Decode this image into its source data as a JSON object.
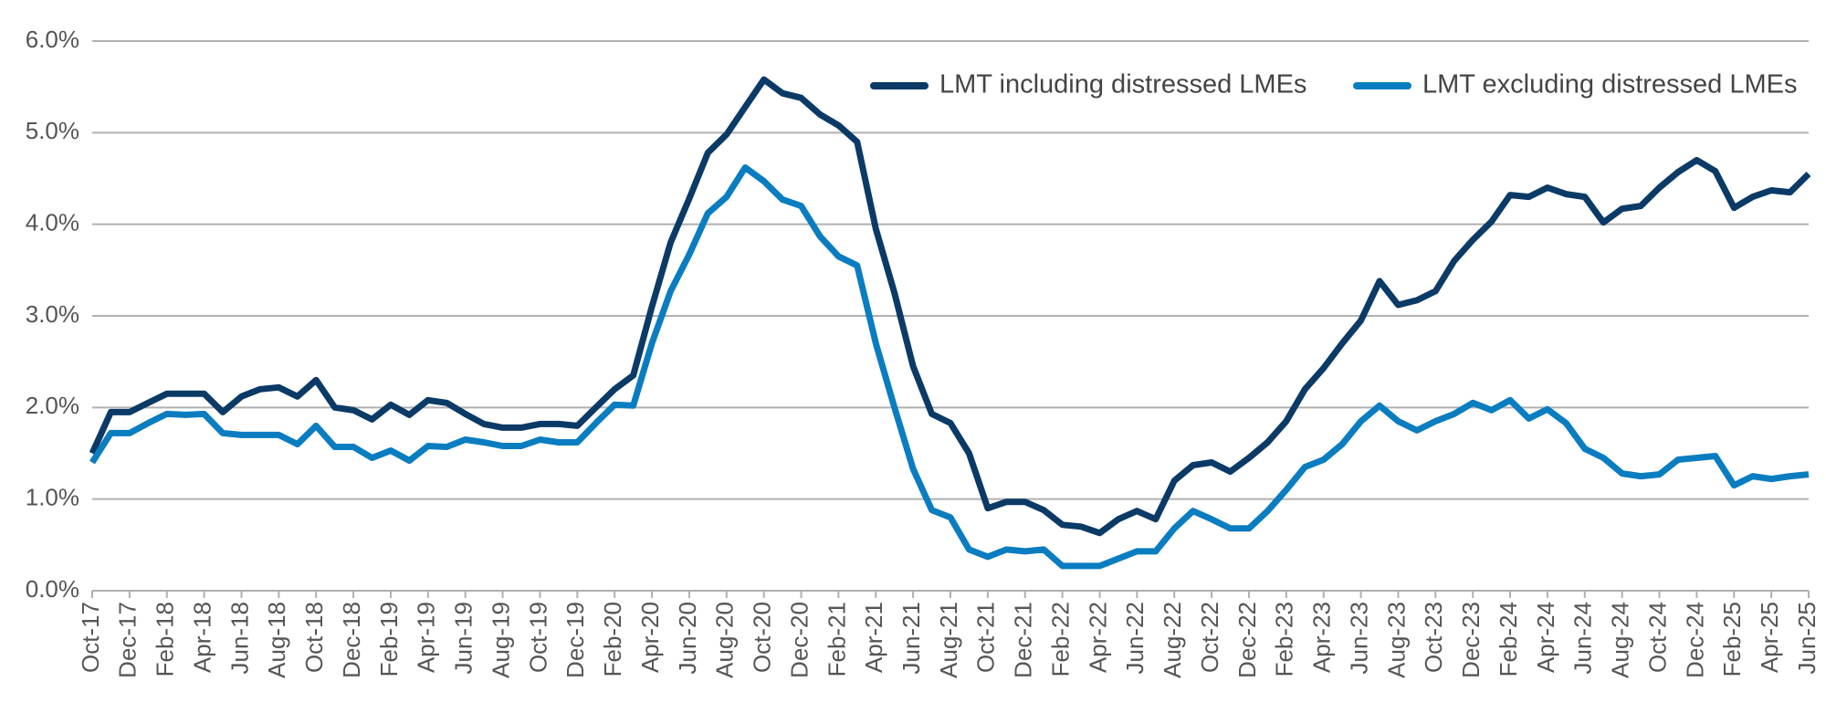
{
  "chart_data": {
    "type": "line",
    "categories": [
      "Oct-17",
      null,
      "Dec-17",
      null,
      "Feb-18",
      null,
      "Apr-18",
      null,
      "Jun-18",
      null,
      "Aug-18",
      null,
      "Oct-18",
      null,
      "Dec-18",
      null,
      "Feb-19",
      null,
      "Apr-19",
      null,
      "Jun-19",
      null,
      "Aug-19",
      null,
      "Oct-19",
      null,
      "Dec-19",
      null,
      "Feb-20",
      null,
      "Apr-20",
      null,
      "Jun-20",
      null,
      "Aug-20",
      null,
      "Oct-20",
      null,
      "Dec-20",
      null,
      "Feb-21",
      null,
      "Apr-21",
      null,
      "Jun-21",
      null,
      "Aug-21",
      null,
      "Oct-21",
      null,
      "Dec-21",
      null,
      "Feb-22",
      null,
      "Apr-22",
      null,
      "Jun-22",
      null,
      "Aug-22",
      null,
      "Oct-22",
      null,
      "Dec-22",
      null,
      "Feb-23",
      null,
      "Apr-23",
      null,
      "Jun-23",
      null,
      "Aug-23",
      null,
      "Oct-23",
      null,
      "Dec-23",
      null,
      "Feb-24",
      null,
      "Apr-24",
      null,
      "Jun-24",
      null,
      "Aug-24",
      null,
      "Oct-24",
      null,
      "Dec-24",
      null,
      "Feb-25",
      null,
      "Apr-25",
      null,
      "Jun-25"
    ],
    "series": [
      {
        "name": "LMT including distressed LMEs",
        "color": "#0b3a66",
        "values": [
          1.5,
          1.95,
          1.95,
          2.05,
          2.15,
          2.15,
          2.15,
          1.95,
          2.12,
          2.2,
          2.22,
          2.12,
          2.3,
          2.0,
          1.97,
          1.87,
          2.03,
          1.92,
          2.08,
          2.05,
          1.93,
          1.82,
          1.78,
          1.78,
          1.82,
          1.82,
          1.8,
          2.0,
          2.2,
          2.35,
          3.1,
          3.8,
          4.28,
          4.78,
          4.98,
          5.28,
          5.58,
          5.43,
          5.38,
          5.2,
          5.08,
          4.9,
          3.95,
          3.25,
          2.45,
          1.93,
          1.83,
          1.5,
          0.9,
          0.97,
          0.97,
          0.88,
          0.72,
          0.7,
          0.63,
          0.78,
          0.87,
          0.78,
          1.2,
          1.37,
          1.4,
          1.3,
          1.45,
          1.62,
          1.85,
          2.2,
          2.43,
          2.7,
          2.95,
          3.38,
          3.12,
          3.17,
          3.27,
          3.6,
          3.83,
          4.03,
          4.32,
          4.3,
          4.4,
          4.33,
          4.3,
          4.02,
          4.17,
          4.2,
          4.4,
          4.57,
          4.7,
          4.58,
          4.18,
          4.3,
          4.37,
          4.35,
          4.55
        ]
      },
      {
        "name": "LMT excluding distressed LMEs",
        "color": "#0a7dc1",
        "values": [
          1.4,
          1.72,
          1.72,
          1.83,
          1.93,
          1.92,
          1.93,
          1.72,
          1.7,
          1.7,
          1.7,
          1.6,
          1.8,
          1.57,
          1.57,
          1.45,
          1.53,
          1.42,
          1.58,
          1.57,
          1.65,
          1.62,
          1.58,
          1.58,
          1.65,
          1.62,
          1.62,
          1.83,
          2.03,
          2.02,
          2.7,
          3.27,
          3.67,
          4.12,
          4.3,
          4.62,
          4.47,
          4.27,
          4.2,
          3.87,
          3.65,
          3.55,
          2.7,
          2.0,
          1.33,
          0.88,
          0.8,
          0.45,
          0.37,
          0.45,
          0.43,
          0.45,
          0.27,
          0.27,
          0.27,
          0.35,
          0.43,
          0.43,
          0.68,
          0.87,
          0.78,
          0.68,
          0.68,
          0.87,
          1.1,
          1.35,
          1.43,
          1.6,
          1.85,
          2.02,
          1.85,
          1.75,
          1.85,
          1.93,
          2.05,
          1.97,
          2.08,
          1.88,
          1.98,
          1.83,
          1.55,
          1.45,
          1.28,
          1.25,
          1.27,
          1.43,
          1.45,
          1.47,
          1.15,
          1.25,
          1.22,
          1.25,
          1.27
        ]
      }
    ],
    "ylim": [
      0,
      6
    ],
    "yticks": [
      {
        "value": 0,
        "label": "0.0%"
      },
      {
        "value": 1,
        "label": "1.0%"
      },
      {
        "value": 2,
        "label": "2.0%"
      },
      {
        "value": 3,
        "label": "3.0%"
      },
      {
        "value": 4,
        "label": "4.0%"
      },
      {
        "value": 5,
        "label": "5.0%"
      },
      {
        "value": 6,
        "label": "6.0%"
      }
    ],
    "grid": true,
    "legend": "top-right"
  }
}
